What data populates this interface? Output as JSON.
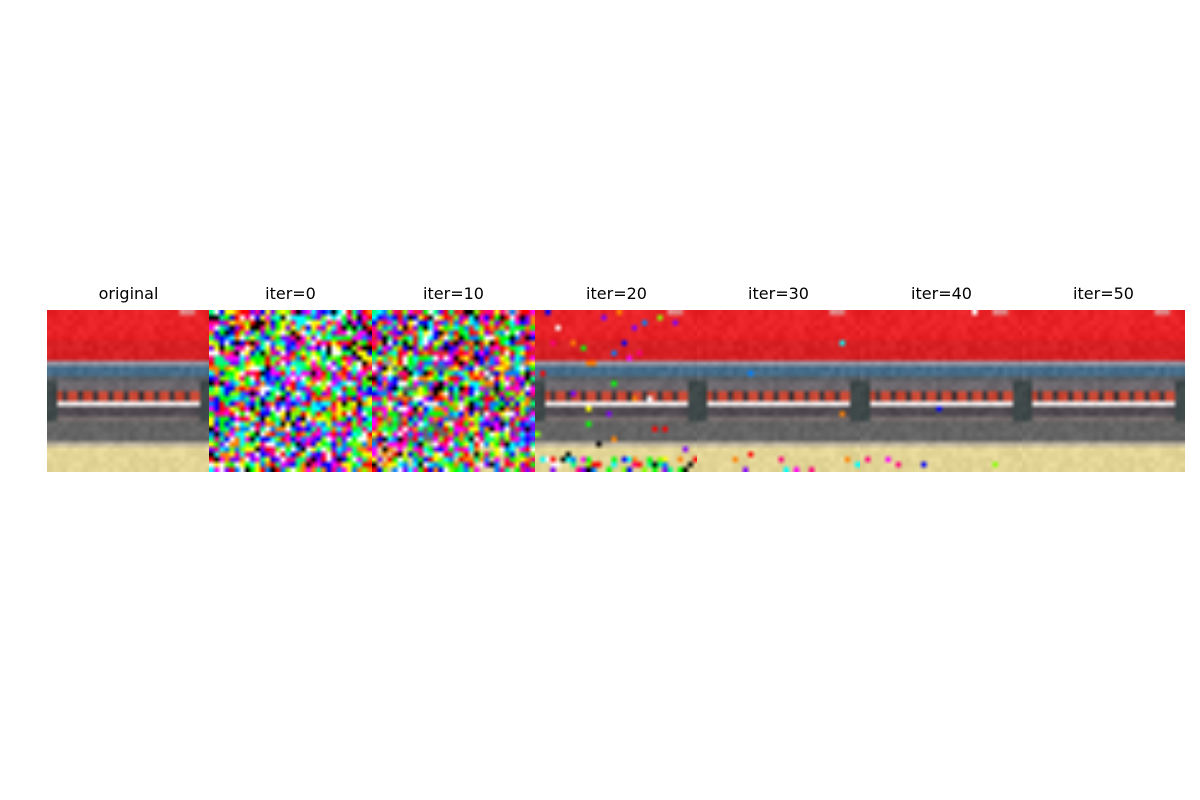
{
  "panels": [
    {
      "title": "original",
      "noise_level": 0.0
    },
    {
      "title": "iter=0",
      "noise_level": 1.0
    },
    {
      "title": "iter=10",
      "noise_level": 0.85
    },
    {
      "title": "iter=20",
      "noise_level": 0.06
    },
    {
      "title": "iter=30",
      "noise_level": 0.01
    },
    {
      "title": "iter=40",
      "noise_level": 0.004
    },
    {
      "title": "iter=50",
      "noise_level": 0.0
    }
  ]
}
